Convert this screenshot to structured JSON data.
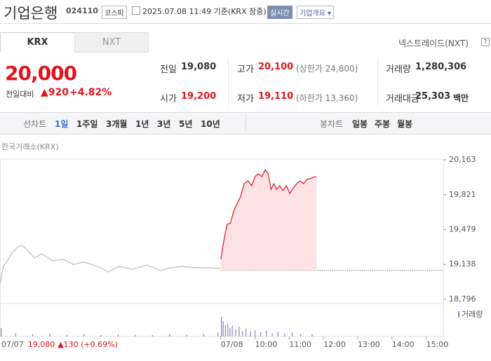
{
  "header": {
    "name": "기업은행",
    "code": "024110",
    "market": "코스피",
    "timestamp": "2025.07.08 11:49 기준(KRX 장중)",
    "realtime": "실시간",
    "overview": "기업개요"
  },
  "tabs": {
    "krx": "KRX",
    "nxt": "NXT",
    "nxt_link": "넥스트레이드(NXT)"
  },
  "quote": {
    "price": "20,000",
    "change_label": "전일대비",
    "change": "▲920",
    "change_pct": "+4.82%"
  },
  "table": {
    "rows": [
      [
        {
          "label": "전일",
          "value": "19,080"
        },
        {
          "label": "고가",
          "value": "20,100",
          "note": "(상한가 24,800)"
        },
        {
          "label": "거래량",
          "value": "1,280,306"
        }
      ],
      [
        {
          "label": "시가",
          "value": "19,200"
        },
        {
          "label": "저가",
          "value": "19,110",
          "note": "(하한가 13,360)"
        },
        {
          "label": "거래대금",
          "value": "25,303",
          "unit": "백만"
        }
      ]
    ]
  },
  "toolbar": {
    "line_chart": "선차트",
    "periods": [
      "1일",
      "1주일",
      "3개월",
      "1년",
      "3년",
      "5년",
      "10년"
    ],
    "candle_chart": "봉차트",
    "candles": [
      "일봉",
      "주봉",
      "월봉"
    ]
  },
  "chart": {
    "type": "line",
    "source": "한국거래소(KRX)",
    "volume_label": "거래량",
    "xlim": [
      -387,
      390
    ],
    "ylim": [
      18796,
      20163
    ],
    "yticks": [
      {
        "value": 20163,
        "label": "20,163"
      },
      {
        "value": 19821,
        "label": "19,821"
      },
      {
        "value": 19479,
        "label": "19,479"
      },
      {
        "value": 19138,
        "label": "19,138"
      },
      {
        "value": 18796,
        "label": "18,796"
      }
    ],
    "xticks": [
      {
        "value": 0,
        "label": "07/08"
      },
      {
        "value": 60,
        "label": "10:00"
      },
      {
        "value": 120,
        "label": "11:00"
      },
      {
        "value": 180,
        "label": "12:00"
      },
      {
        "value": 240,
        "label": "13:00"
      },
      {
        "value": 300,
        "label": "14:00"
      },
      {
        "value": 360,
        "label": "15:00"
      }
    ],
    "baseline": 19080,
    "series": [
      {
        "color": "#bbbbbb",
        "x": [
          -387,
          -381,
          -369,
          -356,
          -348,
          -338,
          -326,
          -314,
          -295,
          -277,
          -258,
          -240,
          -216,
          -197,
          -179,
          -154,
          -130,
          -105,
          -87,
          -69,
          -44,
          -20,
          -1
        ],
        "values": [
          18947,
          19119,
          19222,
          19311,
          19325,
          19270,
          19201,
          19242,
          19174,
          19188,
          19139,
          19160,
          19119,
          19064,
          19119,
          19091,
          19133,
          19078,
          19105,
          19119,
          19105,
          19105,
          19098
        ]
      },
      {
        "color": "#e0141e",
        "fill": "#fde3e4",
        "x": [
          0,
          5,
          11,
          17,
          23,
          29,
          35,
          41,
          48,
          54,
          60,
          66,
          72,
          78,
          83,
          88,
          93,
          98,
          103,
          109,
          115,
          121,
          127,
          133,
          139,
          145,
          151,
          159,
          165,
          168
        ],
        "values": [
          19188,
          19359,
          19531,
          19545,
          19668,
          19737,
          19806,
          19929,
          19957,
          19909,
          19998,
          20026,
          19998,
          20067,
          20026,
          19874,
          19929,
          19874,
          19909,
          19861,
          19909,
          19833,
          19888,
          19929,
          19957,
          19929,
          19971,
          19984,
          19998,
          19991
        ]
      }
    ],
    "volume": {
      "color": "#8a7fc0",
      "vlim": [
        0,
        100
      ],
      "x": [
        -385,
        -360,
        -330,
        -300,
        -270,
        -240,
        -210,
        -180,
        -150,
        -120,
        -90,
        -60,
        -30,
        -5,
        1,
        4,
        8,
        12,
        16,
        20,
        26,
        32,
        38,
        44,
        52,
        60,
        70,
        80,
        90,
        100,
        112,
        125,
        140,
        160
      ],
      "values": [
        30,
        12,
        8,
        10,
        6,
        9,
        5,
        7,
        6,
        5,
        8,
        6,
        9,
        14,
        70,
        55,
        40,
        45,
        30,
        38,
        25,
        35,
        20,
        28,
        18,
        22,
        15,
        20,
        12,
        16,
        10,
        14,
        9,
        8
      ]
    },
    "info": {
      "date": "07/07",
      "price": "19,080",
      "change": "▲130 (+0.69%)"
    }
  }
}
